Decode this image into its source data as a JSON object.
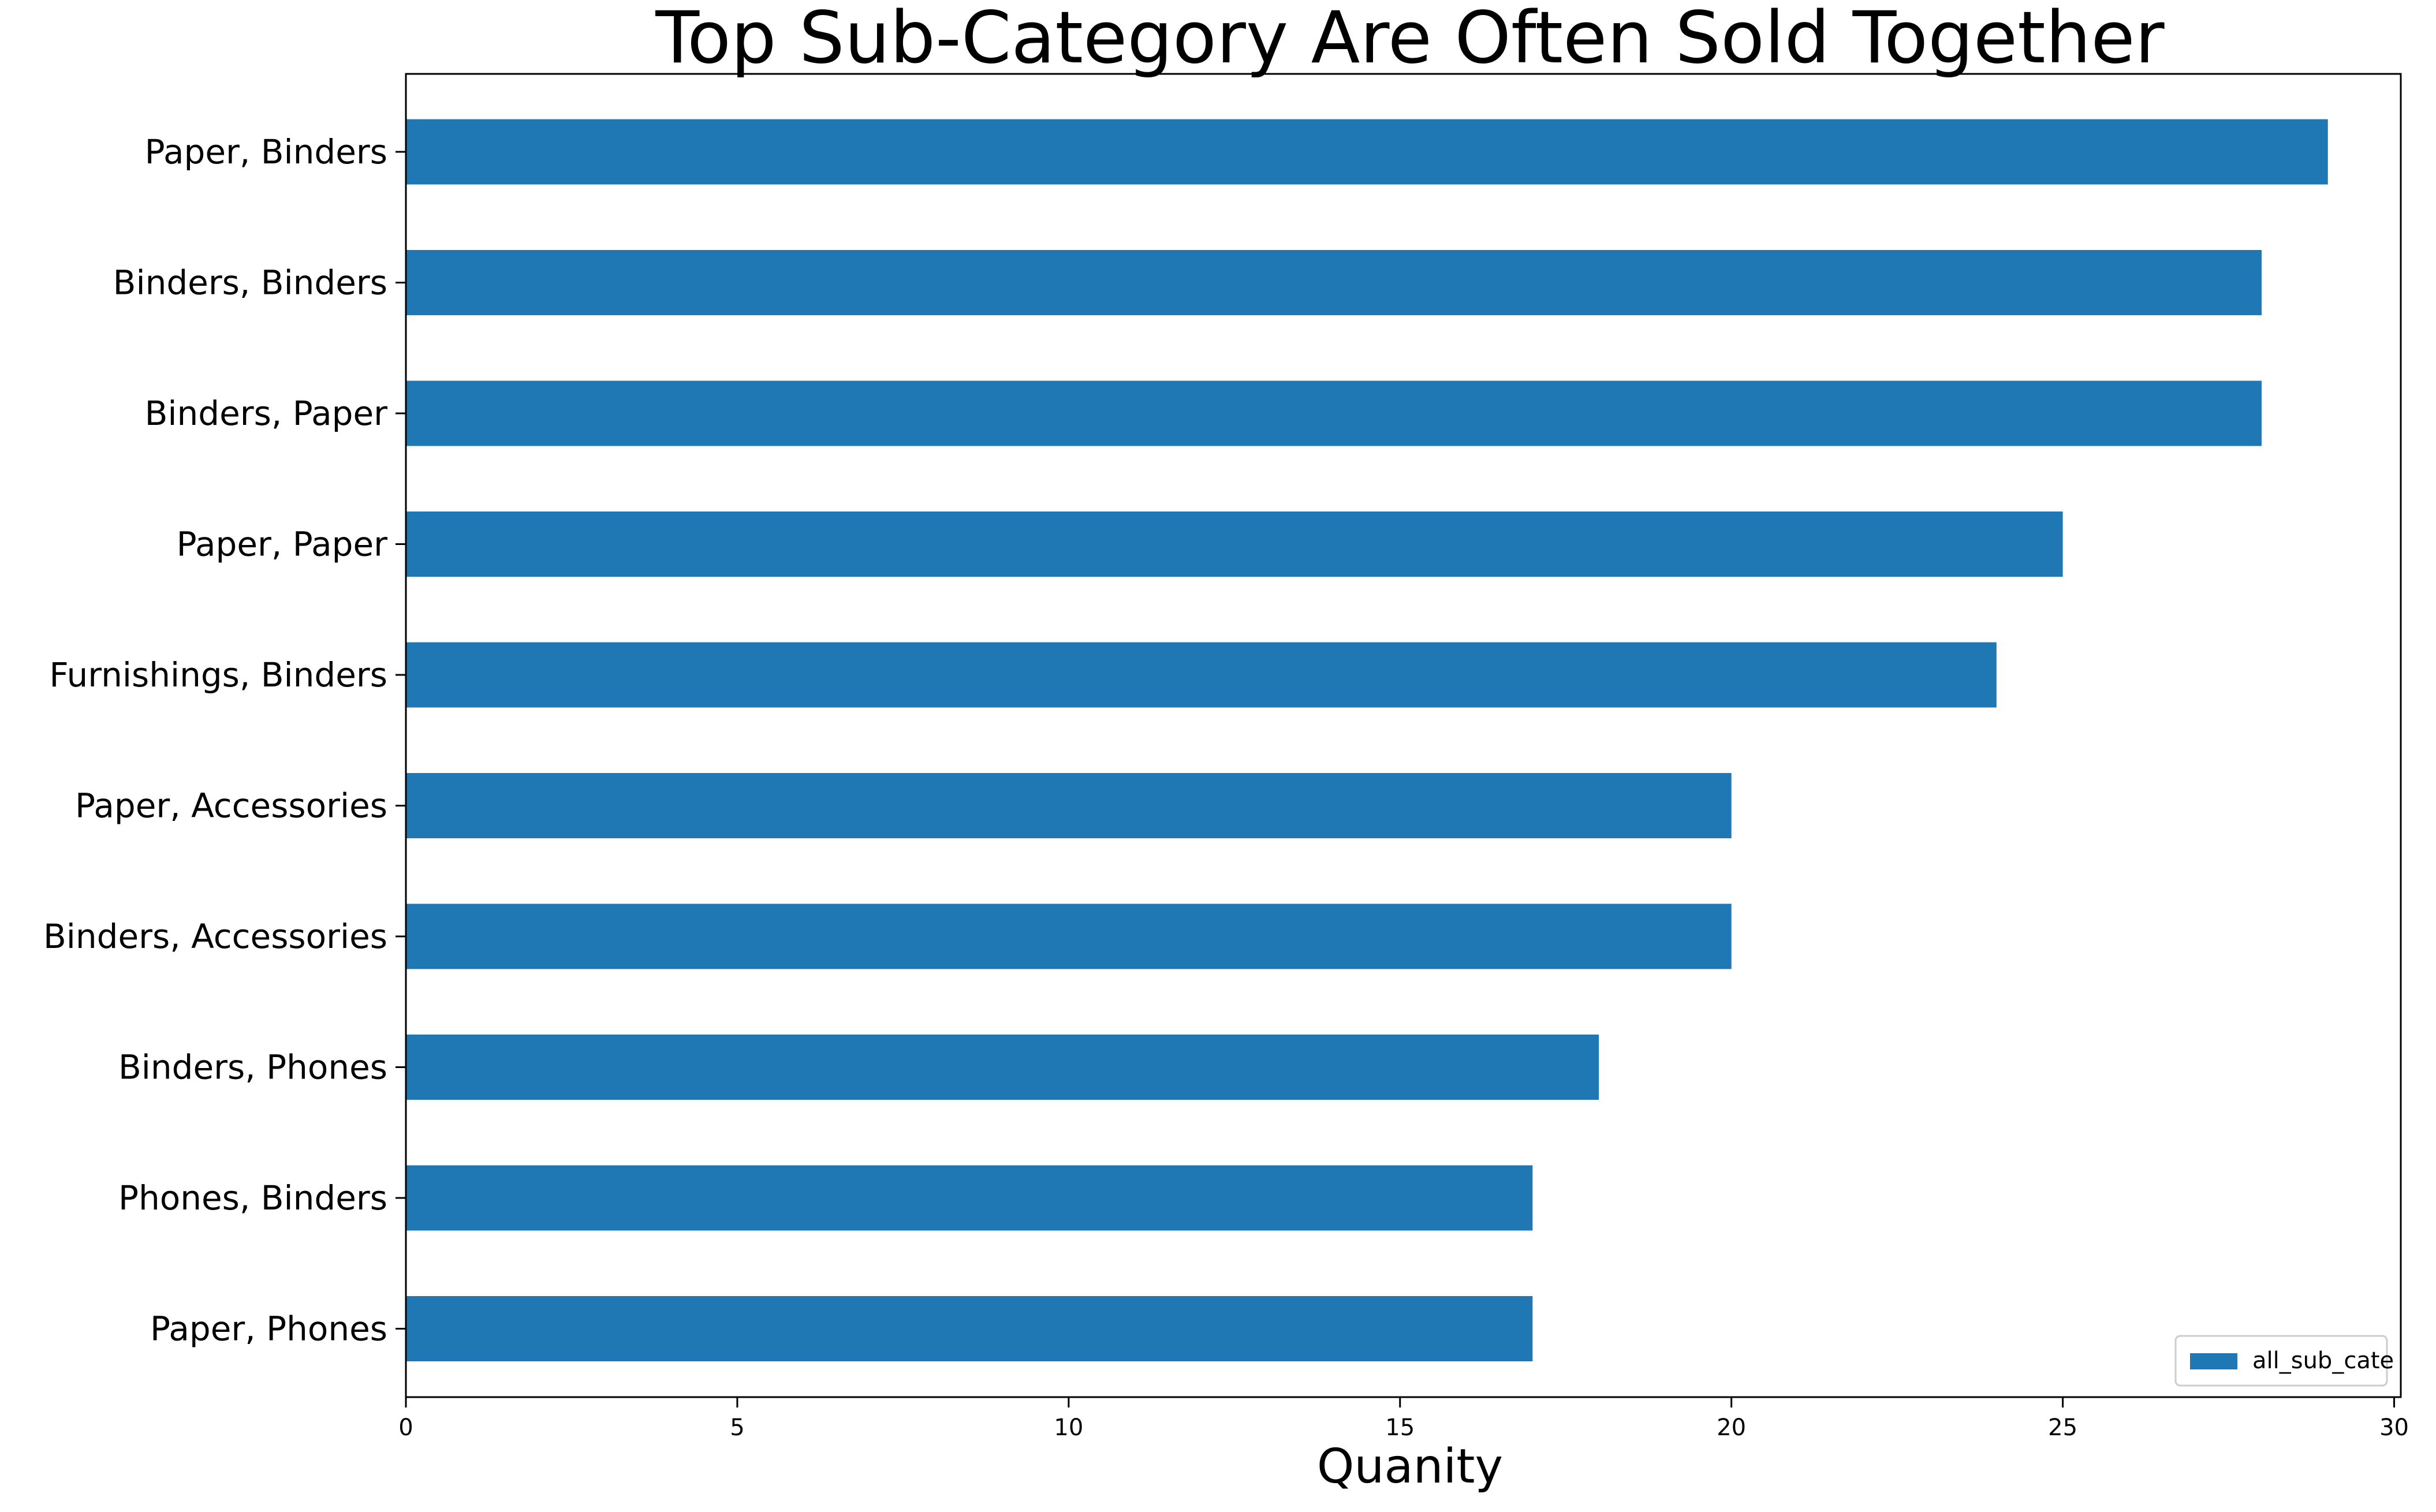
{
  "chart_data": {
    "type": "bar",
    "orientation": "horizontal",
    "title": "Top Sub-Category Are Often Sold Together",
    "xlabel": "Quanity",
    "ylabel": "",
    "categories": [
      "Paper, Binders",
      "Binders, Binders",
      "Binders, Paper",
      "Paper, Paper",
      "Furnishings, Binders",
      "Paper, Accessories",
      "Binders, Accessories",
      "Binders, Phones",
      "Phones, Binders",
      "Paper, Phones"
    ],
    "series": [
      {
        "name": "all_sub_cate",
        "values": [
          29,
          28,
          28,
          25,
          24,
          20,
          20,
          18,
          17,
          17
        ],
        "color": "#1f77b4"
      }
    ],
    "xlim": [
      0,
      30.1
    ],
    "xticks": [
      0,
      5,
      10,
      15,
      20,
      25,
      30
    ],
    "xtick_labels": [
      "0",
      "5",
      "10",
      "15",
      "20",
      "25",
      "30"
    ],
    "grid": false,
    "legend_position": "lower right"
  }
}
